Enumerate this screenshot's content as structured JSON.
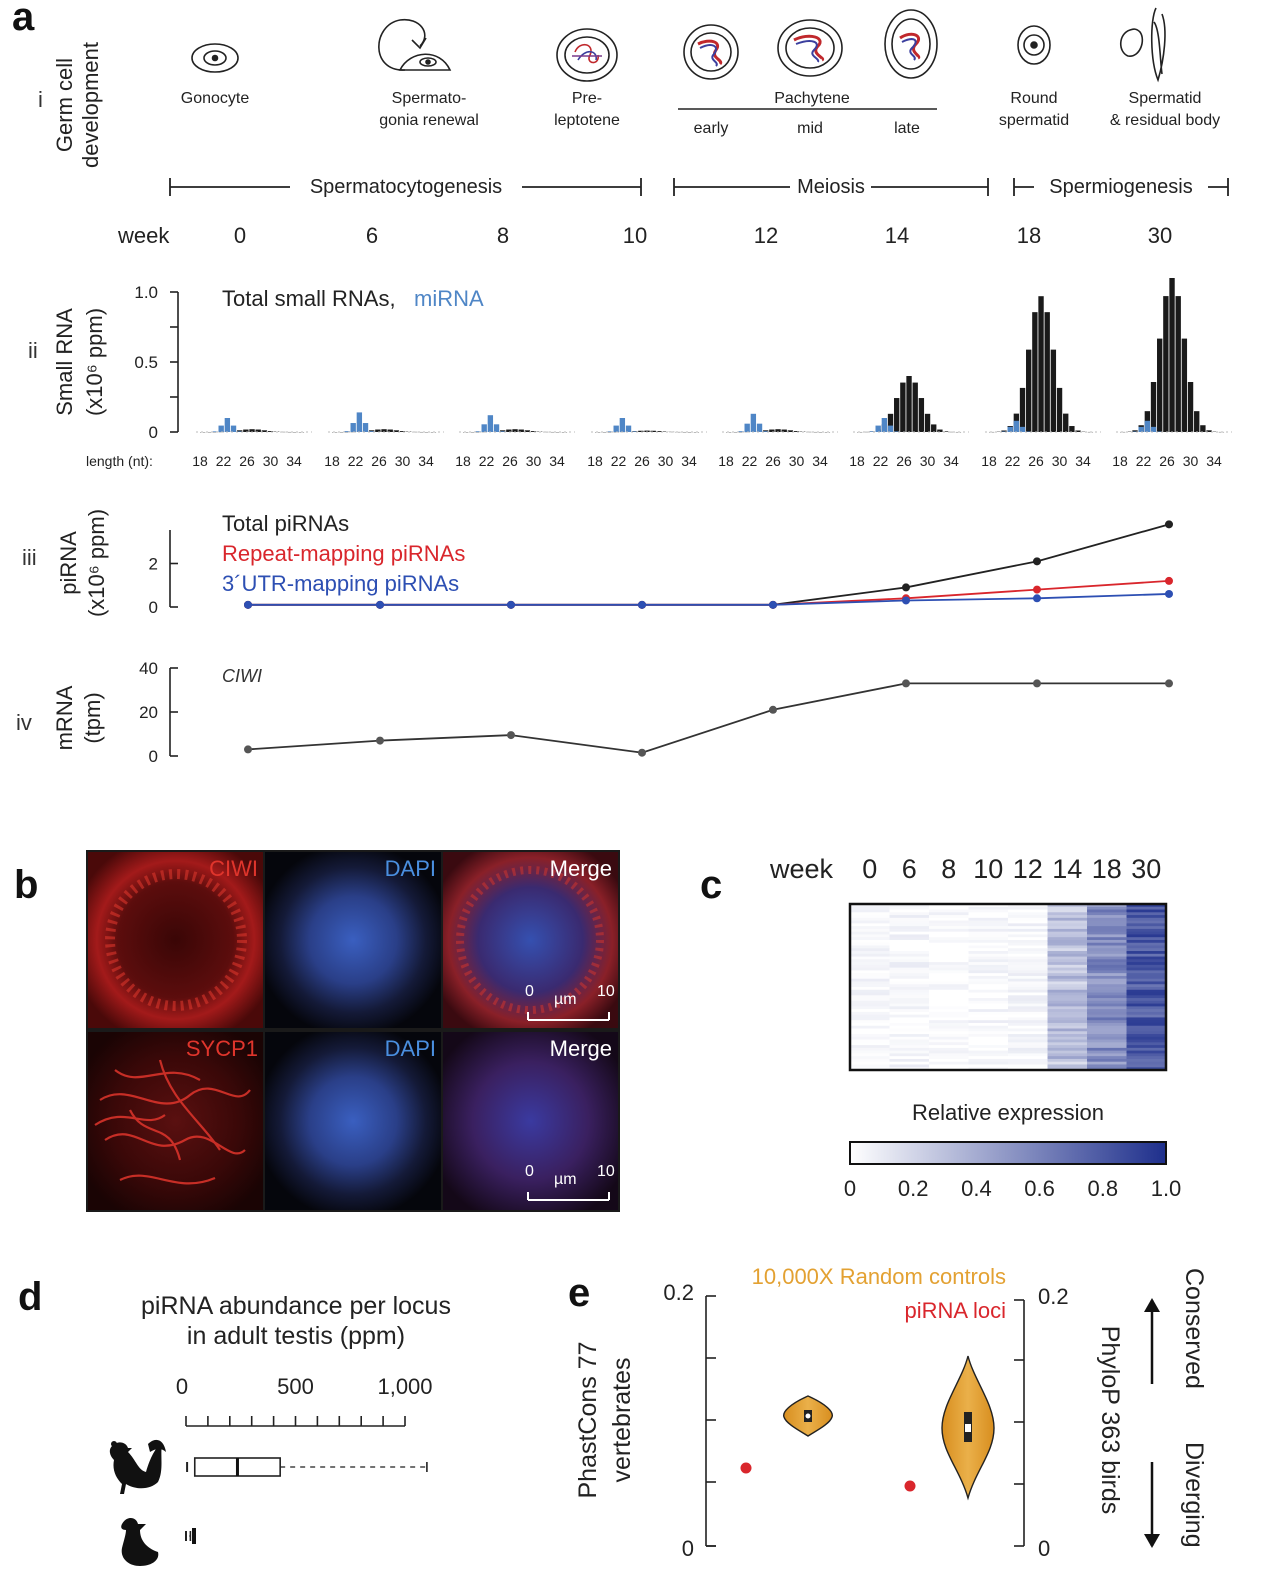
{
  "panels": {
    "a": "a",
    "b": "b",
    "c": "c",
    "d": "d",
    "e": "e"
  },
  "panel_a": {
    "row_i": {
      "roman": "i",
      "ylabel_1": "Germ cell",
      "ylabel_2": "development",
      "stages": {
        "gonocyte": "Gonocyte",
        "sg_1": "Spermato-",
        "sg_2": "gonia renewal",
        "pre_1": "Pre-",
        "pre_2": "leptotene",
        "pachytene": "Pachytene",
        "early": "early",
        "mid": "mid",
        "late": "late",
        "round_1": "Round",
        "round_2": "spermatid",
        "sptd_1": "Spermatid",
        "sptd_2": "& residual body"
      },
      "phases": [
        "Spermatocytogenesis",
        "Meiosis",
        "Spermiogenesis"
      ],
      "week_label": "week",
      "weeks": [
        "0",
        "6",
        "8",
        "10",
        "12",
        "14",
        "18",
        "30"
      ]
    },
    "row_ii": {
      "roman": "ii",
      "ylabel_1": "Small RNA",
      "ylabel_2": "(x10⁶ ppm)",
      "legend_total": "Total small RNAs,",
      "legend_mirna": "miRNA",
      "length_label": "length (nt):",
      "length_ticks": [
        "18",
        "22",
        "26",
        "30",
        "34"
      ],
      "total_color": "#1a1a1a",
      "mirna_color": "#4f86c6"
    },
    "row_iii": {
      "roman": "iii",
      "ylabel_1": "piRNA",
      "ylabel_2": "(x10⁶ ppm)",
      "legend_total": "Total piRNAs",
      "legend_repeat": "Repeat-mapping piRNAs",
      "legend_utr": "3´UTR-mapping piRNAs",
      "total_color": "#222222",
      "repeat_color": "#d9262c",
      "utr_color": "#2d4fb3"
    },
    "row_iv": {
      "roman": "iv",
      "ylabel_1": "mRNA",
      "ylabel_2": "(tpm)",
      "gene": "CIWI"
    }
  },
  "panel_b": {
    "top_labels": [
      "CIWI",
      "DAPI",
      "Merge"
    ],
    "bottom_labels": [
      "SYCP1",
      "DAPI",
      "Merge"
    ],
    "scale_start": "0",
    "scale_unit": "µm",
    "scale_end": "10"
  },
  "panel_c": {
    "week_label": "week",
    "weeks": [
      "0",
      "6",
      "8",
      "10",
      "12",
      "14",
      "18",
      "30"
    ],
    "colorbar_title": "Relative expression",
    "colorbar_ticks": [
      "0",
      "0.2",
      "0.4",
      "0.6",
      "0.8",
      "1.0"
    ],
    "low_color": "#ffffff",
    "high_color": "#1e2f8c",
    "column_mean_levels": [
      0.05,
      0.04,
      0.02,
      0.03,
      0.04,
      0.3,
      0.55,
      0.8
    ]
  },
  "panel_d": {
    "title_1": "piRNA abundance per locus",
    "title_2": "in adult testis (ppm)",
    "ticks": [
      "0",
      "500",
      "1,000"
    ],
    "chicken_box": {
      "min": 5,
      "q1": 40,
      "median": 235,
      "q3": 430,
      "max": 1100
    },
    "duck_box": {
      "min": 0,
      "q1": 0,
      "median": 0,
      "q3": 15,
      "max": 20
    }
  },
  "panel_e": {
    "legend_controls": "10,000X Random controls",
    "legend_loci": "piRNA loci",
    "controls_color": "#e3a132",
    "loci_color": "#d9262c",
    "left_ylabel_1": "PhastCons 77",
    "left_ylabel_2": "vertebrates",
    "right_ylabel": "PhyloP 363 birds",
    "left_ticks": [
      "0.2",
      "0"
    ],
    "right_ticks": [
      "0.2",
      "0"
    ],
    "arrow_up": "Conserved",
    "arrow_down": "Diverging"
  },
  "chart_data": [
    {
      "type": "bar",
      "panel": "a-ii",
      "categories": [
        "0",
        "6",
        "8",
        "10",
        "12",
        "14",
        "18",
        "30"
      ],
      "ylim": [
        0,
        1.0
      ],
      "yticks": [
        "1.0",
        "0.5",
        "0"
      ],
      "series": [
        {
          "name": "Total small RNAs",
          "peak_by_week": [
            0.02,
            0.02,
            0.02,
            0.01,
            0.02,
            0.4,
            0.97,
            1.1
          ]
        },
        {
          "name": "miRNA",
          "peak_by_week": [
            0.1,
            0.14,
            0.12,
            0.1,
            0.13,
            0.1,
            0.08,
            0.08
          ]
        }
      ]
    },
    {
      "type": "line",
      "panel": "a-iii",
      "categories": [
        "0",
        "6",
        "8",
        "10",
        "12",
        "14",
        "18",
        "30"
      ],
      "ylim": [
        0,
        4
      ],
      "yticks": [
        "2",
        "0"
      ],
      "series": [
        {
          "name": "Total piRNAs",
          "values": [
            0.1,
            0.1,
            0.1,
            0.1,
            0.1,
            0.9,
            2.1,
            3.8
          ]
        },
        {
          "name": "Repeat-mapping piRNAs",
          "values": [
            0.1,
            0.1,
            0.1,
            0.1,
            0.1,
            0.4,
            0.8,
            1.2
          ]
        },
        {
          "name": "3´UTR-mapping piRNAs",
          "values": [
            0.1,
            0.1,
            0.1,
            0.1,
            0.1,
            0.3,
            0.4,
            0.6
          ]
        }
      ]
    },
    {
      "type": "line",
      "panel": "a-iv",
      "categories": [
        "0",
        "6",
        "8",
        "10",
        "12",
        "14",
        "18",
        "30"
      ],
      "ylim": [
        0,
        40
      ],
      "yticks": [
        "40",
        "20",
        "0"
      ],
      "series": [
        {
          "name": "CIWI",
          "values": [
            3,
            7,
            9.5,
            1.5,
            21,
            33,
            33,
            33
          ]
        }
      ]
    }
  ]
}
